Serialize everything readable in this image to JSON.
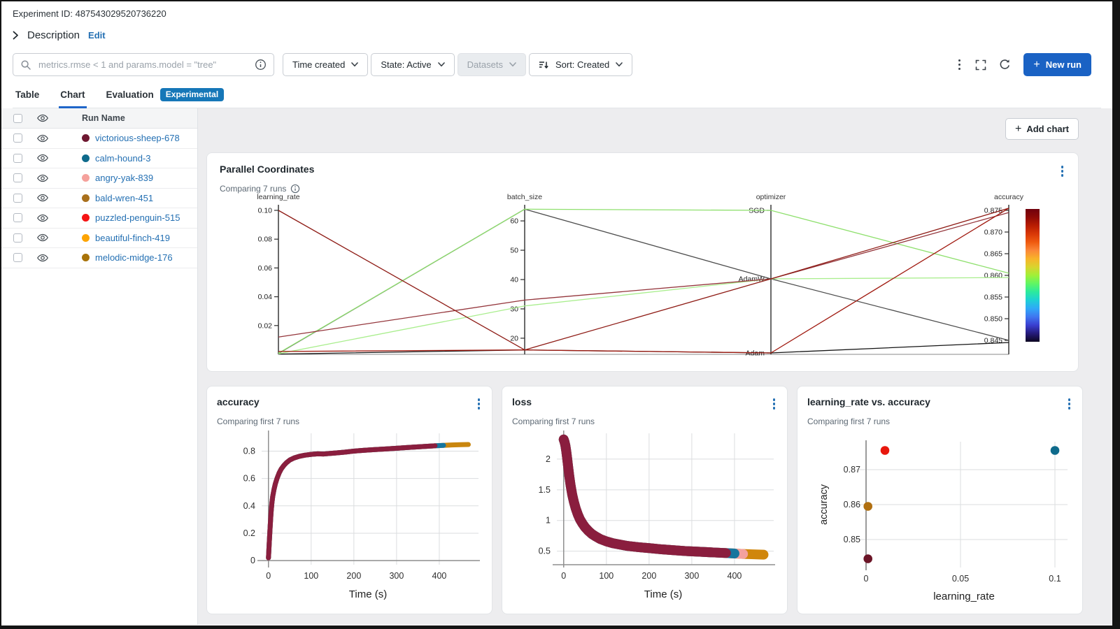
{
  "header": {
    "experiment_id": "Experiment ID: 487543029520736220",
    "description_label": "Description",
    "edit_label": "Edit"
  },
  "toolbar": {
    "search_placeholder": "metrics.rmse < 1 and params.model = \"tree\"",
    "filters": [
      {
        "label": "Time created",
        "disabled": false,
        "sort_icon": false
      },
      {
        "label": "State: Active",
        "disabled": false,
        "sort_icon": false
      },
      {
        "label": "Datasets",
        "disabled": true,
        "sort_icon": false
      },
      {
        "label": "Sort: Created",
        "disabled": false,
        "sort_icon": true
      }
    ],
    "new_run_label": "New run"
  },
  "tabs": [
    {
      "label": "Table",
      "active": false,
      "badge": ""
    },
    {
      "label": "Chart",
      "active": true,
      "badge": ""
    },
    {
      "label": "Evaluation",
      "active": false,
      "badge": "Experimental"
    }
  ],
  "run_list": {
    "header_label": "Run Name",
    "runs": [
      {
        "name": "victorious-sheep-678",
        "color": "#6e1831"
      },
      {
        "name": "calm-hound-3",
        "color": "#0e6a8b"
      },
      {
        "name": "angry-yak-839",
        "color": "#f5a19c"
      },
      {
        "name": "bald-wren-451",
        "color": "#a9701c"
      },
      {
        "name": "puzzled-penguin-515",
        "color": "#f51414"
      },
      {
        "name": "beautiful-finch-419",
        "color": "#fda403"
      },
      {
        "name": "melodic-midge-176",
        "color": "#a87309"
      }
    ]
  },
  "charts_panel": {
    "add_chart_label": "Add chart"
  },
  "chart_data": [
    {
      "type": "parallel_coordinates",
      "title": "Parallel Coordinates",
      "subtitle": "Comparing 7 runs",
      "axes": [
        {
          "name": "learning_rate",
          "kind": "linear",
          "min": 0,
          "max": 0.1,
          "ticks": [
            {
              "v": 0.02,
              "l": "0.02"
            },
            {
              "v": 0.04,
              "l": "0.04"
            },
            {
              "v": 0.06,
              "l": "0.06"
            },
            {
              "v": 0.08,
              "l": "0.08"
            },
            {
              "v": 0.1,
              "l": "0.10"
            }
          ]
        },
        {
          "name": "batch_size",
          "kind": "linear",
          "min": 14.5,
          "max": 65.5,
          "ticks": [
            {
              "v": 20,
              "l": "20"
            },
            {
              "v": 30,
              "l": "30"
            },
            {
              "v": 40,
              "l": "40"
            },
            {
              "v": 50,
              "l": "50"
            },
            {
              "v": 60,
              "l": "60"
            }
          ]
        },
        {
          "name": "optimizer",
          "kind": "category",
          "categories": [
            "Adam",
            "AdamW",
            "SGD"
          ]
        },
        {
          "name": "accuracy",
          "kind": "linear",
          "min": 0.845,
          "max": 0.875,
          "ticks": [
            {
              "v": 0.845,
              "l": "0.845"
            },
            {
              "v": 0.85,
              "l": "0.850"
            },
            {
              "v": 0.855,
              "l": "0.855"
            },
            {
              "v": 0.86,
              "l": "0.860"
            },
            {
              "v": 0.865,
              "l": "0.865"
            },
            {
              "v": 0.87,
              "l": "0.870"
            },
            {
              "v": 0.875,
              "l": "0.875"
            }
          ]
        }
      ],
      "runs": [
        {
          "learning_rate": 0.1,
          "batch_size": 16,
          "optimizer": "AdamW",
          "accuracy": 0.8755,
          "line_color": "#8e1b15"
        },
        {
          "learning_rate": 0.012,
          "batch_size": 33,
          "optimizer": "AdamW",
          "accuracy": 0.8745,
          "line_color": "#94353b"
        },
        {
          "learning_rate": 0.002,
          "batch_size": 16,
          "optimizer": "Adam",
          "accuracy": 0.8755,
          "line_color": "#a01a10"
        },
        {
          "learning_rate": 0.0008,
          "batch_size": 64,
          "optimizer": "SGD",
          "accuracy": 0.8605,
          "line_color": "#8fe06e"
        },
        {
          "learning_rate": 0.0004,
          "batch_size": 31,
          "optimizer": "AdamW",
          "accuracy": 0.8595,
          "line_color": "#a9ee8d"
        },
        {
          "learning_rate": 0.0006,
          "batch_size": 64,
          "optimizer": "AdamW",
          "accuracy": 0.845,
          "line_color": "#4d4d4d"
        },
        {
          "learning_rate": 0.0002,
          "batch_size": 16,
          "optimizer": "Adam",
          "accuracy": 0.8445,
          "line_color": "#151515"
        }
      ],
      "colorbar": [
        "#70000d",
        "#8f0a06",
        "#b81d02",
        "#d93806",
        "#ef5a10",
        "#fb8838",
        "#f8b42a",
        "#d9d42e",
        "#a0f038",
        "#5ff664",
        "#2bea9e",
        "#1ed0d6",
        "#2fa8f8",
        "#3f76f0",
        "#3a3fd0",
        "#251a7a",
        "#0c0620"
      ]
    },
    {
      "type": "line",
      "title": "accuracy",
      "subtitle": "Comparing first 7 runs",
      "xlabel": "Time (s)",
      "x_ticks": [
        0,
        100,
        200,
        300,
        400
      ],
      "y_ticks": [
        0,
        0.2,
        0.4,
        0.6,
        0.8
      ],
      "xlim": [
        -16,
        482
      ],
      "ylim": [
        -0.03,
        0.93
      ],
      "axis_y": 0,
      "band_width": 7,
      "layers": [
        {
          "color": "#c9860e",
          "x_end": 470
        },
        {
          "color": "#f3a19e",
          "x_end": 420
        },
        {
          "color": "#16769e",
          "x_end": 410
        },
        {
          "color": "#8a1e3e",
          "x_end": 400
        }
      ],
      "points": [
        [
          0,
          0.02
        ],
        [
          1,
          0.08
        ],
        [
          2,
          0.14
        ],
        [
          4,
          0.25
        ],
        [
          6,
          0.35
        ],
        [
          8,
          0.42
        ],
        [
          10,
          0.47
        ],
        [
          13,
          0.52
        ],
        [
          16,
          0.56
        ],
        [
          20,
          0.6
        ],
        [
          25,
          0.64
        ],
        [
          30,
          0.67
        ],
        [
          36,
          0.695
        ],
        [
          42,
          0.715
        ],
        [
          50,
          0.735
        ],
        [
          60,
          0.75
        ],
        [
          72,
          0.762
        ],
        [
          85,
          0.77
        ],
        [
          100,
          0.776
        ],
        [
          115,
          0.78
        ],
        [
          130,
          0.779
        ],
        [
          145,
          0.783
        ],
        [
          160,
          0.787
        ],
        [
          180,
          0.793
        ],
        [
          200,
          0.8
        ],
        [
          225,
          0.806
        ],
        [
          250,
          0.811
        ],
        [
          275,
          0.816
        ],
        [
          300,
          0.821
        ],
        [
          330,
          0.827
        ],
        [
          360,
          0.833
        ],
        [
          390,
          0.839
        ],
        [
          410,
          0.842
        ],
        [
          430,
          0.845
        ],
        [
          450,
          0.847
        ],
        [
          468,
          0.848
        ]
      ]
    },
    {
      "type": "line",
      "title": "loss",
      "subtitle": "Comparing first 7 runs",
      "xlabel": "Time (s)",
      "x_ticks": [
        0,
        100,
        200,
        300,
        400
      ],
      "y_ticks": [
        0.5,
        1,
        1.5,
        2
      ],
      "xlim": [
        -16,
        482
      ],
      "ylim": [
        0.28,
        2.42
      ],
      "axis_y": null,
      "band_width": 14,
      "layers": [
        {
          "color": "#d0860c",
          "x_end": 470
        },
        {
          "color": "#f3a19e",
          "x_end": 421
        },
        {
          "color": "#16769e",
          "x_end": 409
        },
        {
          "color": "#8a1e3e",
          "x_end": 397
        }
      ],
      "points": [
        [
          0,
          2.32
        ],
        [
          2,
          2.28
        ],
        [
          4,
          2.22
        ],
        [
          6,
          2.13
        ],
        [
          8,
          2.02
        ],
        [
          10,
          1.9
        ],
        [
          13,
          1.73
        ],
        [
          16,
          1.58
        ],
        [
          20,
          1.42
        ],
        [
          24,
          1.3
        ],
        [
          28,
          1.2
        ],
        [
          33,
          1.1
        ],
        [
          38,
          1.02
        ],
        [
          44,
          0.95
        ],
        [
          50,
          0.89
        ],
        [
          58,
          0.83
        ],
        [
          66,
          0.78
        ],
        [
          75,
          0.74
        ],
        [
          85,
          0.7
        ],
        [
          100,
          0.66
        ],
        [
          115,
          0.63
        ],
        [
          130,
          0.61
        ],
        [
          150,
          0.585
        ],
        [
          175,
          0.565
        ],
        [
          200,
          0.55
        ],
        [
          230,
          0.53
        ],
        [
          260,
          0.515
        ],
        [
          290,
          0.5
        ],
        [
          320,
          0.49
        ],
        [
          350,
          0.48
        ],
        [
          380,
          0.47
        ],
        [
          400,
          0.462
        ],
        [
          420,
          0.455
        ],
        [
          440,
          0.45
        ],
        [
          468,
          0.443
        ]
      ]
    },
    {
      "type": "scatter",
      "title": "learning_rate vs. accuracy",
      "subtitle": "Comparing first 7 runs",
      "xlabel": "learning_rate",
      "ylabel": "accuracy",
      "x_ticks": [
        0,
        0.05,
        0.1
      ],
      "y_ticks": [
        0.85,
        0.86,
        0.87
      ],
      "points": [
        {
          "x": 0.01,
          "y": 0.8755,
          "color": "#e8170d"
        },
        {
          "x": 0.1,
          "y": 0.8755,
          "color": "#0e6a8b"
        },
        {
          "x": 0.001,
          "y": 0.8595,
          "color": "#b06f10"
        },
        {
          "x": 0.001,
          "y": 0.8445,
          "color": "#6b1527"
        }
      ]
    }
  ]
}
